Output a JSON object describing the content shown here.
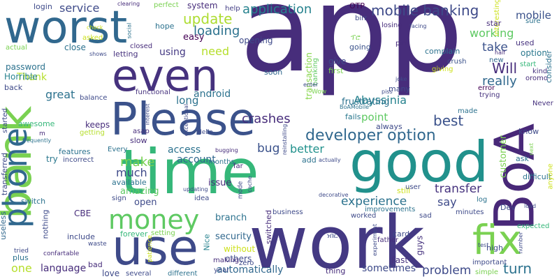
{
  "words": [
    {
      "text": "app",
      "color": "#472d7b"
    },
    {
      "text": "bank",
      "color": "#7ad151"
    },
    {
      "text": "worst",
      "color": "#31688e"
    },
    {
      "text": "time",
      "color": "#35b779"
    },
    {
      "text": "work",
      "color": "#443983"
    },
    {
      "text": "Please",
      "color": "#3b528b"
    },
    {
      "text": "good",
      "color": "#21918c"
    },
    {
      "text": "even",
      "color": "#46327e"
    },
    {
      "text": "use",
      "color": "#3e4a89"
    },
    {
      "text": "BoA",
      "color": "#482878"
    },
    {
      "text": "phone",
      "color": "#31688e"
    },
    {
      "text": "fix",
      "color": "#7ad151"
    },
    {
      "text": "money",
      "color": "#5ec962"
    },
    {
      "text": "developer option",
      "color": "#31688e"
    },
    {
      "text": "mobile banking",
      "color": "#3e4a89"
    },
    {
      "text": "application",
      "color": "#26828e"
    },
    {
      "text": "update",
      "color": "#addc30"
    },
    {
      "text": "loading",
      "color": "#2c728e"
    },
    {
      "text": "crashes",
      "color": "#472d7b"
    },
    {
      "text": "best",
      "color": "#3b528b"
    },
    {
      "text": "experience",
      "color": "#2c728e"
    },
    {
      "text": "transfer",
      "color": "#46327e"
    },
    {
      "text": "problem",
      "color": "#3e4a89"
    },
    {
      "text": "turn",
      "color": "#2c728e"
    },
    {
      "text": "really",
      "color": "#31688e"
    },
    {
      "text": "working",
      "color": "#5ec962"
    },
    {
      "text": "take",
      "color": "#3b528b"
    },
    {
      "text": "Will",
      "color": "#472d7b"
    },
    {
      "text": "mobile",
      "color": "#3b528b"
    },
    {
      "text": "option",
      "color": "#2a788e"
    },
    {
      "text": "service",
      "color": "#3e4a89"
    },
    {
      "text": "need",
      "color": "#b5de2b"
    },
    {
      "text": "using",
      "color": "#443983"
    },
    {
      "text": "long",
      "color": "#2c728e"
    },
    {
      "text": "great",
      "color": "#2c728e"
    },
    {
      "text": "bug",
      "color": "#3b528b"
    },
    {
      "text": "make",
      "color": "#7ad151"
    },
    {
      "text": "much",
      "color": "#3e4a89"
    },
    {
      "text": "better",
      "color": "#21918c"
    },
    {
      "text": "access",
      "color": "#2c728e"
    },
    {
      "text": "account",
      "color": "#31688e"
    },
    {
      "text": "issue",
      "color": "#472d7b"
    },
    {
      "text": "amazing",
      "color": "#5ec962"
    },
    {
      "text": "open",
      "color": "#3e4a89"
    },
    {
      "text": "say",
      "color": "#3e4a89"
    },
    {
      "text": "Abyssinia",
      "color": "#26828e"
    },
    {
      "text": "point",
      "color": "#5ec962"
    },
    {
      "text": "frustrating",
      "color": "#2c728e"
    },
    {
      "text": "android",
      "color": "#2c728e"
    },
    {
      "text": "customer",
      "color": "#7ad151"
    },
    {
      "text": "transaction",
      "color": "#86d549"
    },
    {
      "text": "language",
      "color": "#472d7b"
    },
    {
      "text": "automatically",
      "color": "#31688e"
    },
    {
      "text": "sometimes",
      "color": "#3e4a89"
    },
    {
      "text": "Fast",
      "color": "#46327e"
    },
    {
      "text": "one",
      "color": "#b5de2b"
    },
    {
      "text": "security",
      "color": "#31688e"
    },
    {
      "text": "branch",
      "color": "#2c728e"
    },
    {
      "text": "without",
      "color": "#cde11d"
    },
    {
      "text": "others",
      "color": "#3e4a89"
    },
    {
      "text": "Nice",
      "color": "#26828e"
    },
    {
      "text": "switched",
      "color": "#472d7b"
    },
    {
      "text": "easy",
      "color": "#440154"
    },
    {
      "text": "system",
      "color": "#472d7b"
    },
    {
      "text": "opening",
      "color": "#3e4a89"
    },
    {
      "text": "help",
      "color": "#433e85"
    },
    {
      "text": "login",
      "color": "#3e4a89"
    },
    {
      "text": "perfect",
      "color": "#7ad151"
    },
    {
      "text": "OTP",
      "color": "#440154"
    },
    {
      "text": "birr",
      "color": "#3e4a89"
    },
    {
      "text": "interesting",
      "color": "#cde11d"
    },
    {
      "text": "Thank",
      "color": "#b5de2b"
    },
    {
      "text": "password",
      "color": "#2c728e"
    },
    {
      "text": "Horrible",
      "color": "#26828e"
    },
    {
      "text": "close",
      "color": "#2c728e"
    },
    {
      "text": "asked",
      "color": "#cde11d"
    },
    {
      "text": "letting",
      "color": "#46327e"
    },
    {
      "text": "closed",
      "color": "#472d7b"
    },
    {
      "text": "hope",
      "color": "#2c728e"
    },
    {
      "text": "soon",
      "color": "#31688e"
    },
    {
      "text": "banking",
      "color": "#5ec962"
    },
    {
      "text": "give",
      "color": "#3e4a89"
    },
    {
      "text": "first",
      "color": "#7ad151"
    },
    {
      "text": "going",
      "color": "#3b528b"
    },
    {
      "text": "losing",
      "color": "#472d7b"
    },
    {
      "text": "star",
      "color": "#472d7b"
    },
    {
      "text": "sure",
      "color": "#2c728e"
    },
    {
      "text": "used",
      "color": "#46327e"
    },
    {
      "text": "complain",
      "color": "#2c728e"
    },
    {
      "text": "giving",
      "color": "#cde11d"
    },
    {
      "text": "crush",
      "color": "#3b528b"
    },
    {
      "text": "kind",
      "color": "#46327e"
    },
    {
      "text": "start",
      "color": "#35b779"
    },
    {
      "text": "consider",
      "color": "#2c728e"
    },
    {
      "text": "oromo",
      "color": "#472d7b"
    },
    {
      "text": "error",
      "color": "#440154"
    },
    {
      "text": "trying",
      "color": "#46327e"
    },
    {
      "text": "new",
      "color": "#31688e"
    },
    {
      "text": "many",
      "color": "#3e4a89"
    },
    {
      "text": "keeps",
      "color": "#472d7b"
    },
    {
      "text": "getting",
      "color": "#b5de2b"
    },
    {
      "text": "awesome",
      "color": "#35b779"
    },
    {
      "text": "slow",
      "color": "#472d7b"
    },
    {
      "text": "features",
      "color": "#2c728e"
    },
    {
      "text": "Every",
      "color": "#2c728e"
    },
    {
      "text": "incorrect",
      "color": "#3e4a89"
    },
    {
      "text": "try",
      "color": "#2a788e"
    },
    {
      "text": "available",
      "color": "#2c728e"
    },
    {
      "text": "sign",
      "color": "#3e4a89"
    },
    {
      "text": "idea",
      "color": "#3e4a89"
    },
    {
      "text": "far",
      "color": "#472d7b"
    },
    {
      "text": "add",
      "color": "#2c728e"
    },
    {
      "text": "fails",
      "color": "#2a788e"
    },
    {
      "text": "always",
      "color": "#3e4a89"
    },
    {
      "text": "months",
      "color": "#2c728e"
    },
    {
      "text": "Never",
      "color": "#46327e"
    },
    {
      "text": "know",
      "color": "#3e4a89"
    },
    {
      "text": "made",
      "color": "#2c728e"
    },
    {
      "text": "difficult",
      "color": "#2c728e"
    },
    {
      "text": "ask",
      "color": "#2c728e"
    },
    {
      "text": "anyone",
      "color": "#cde11d"
    },
    {
      "text": "still",
      "color": "#cde11d"
    },
    {
      "text": "user",
      "color": "#3e4a89"
    },
    {
      "text": "log",
      "color": "#2c728e"
    },
    {
      "text": "Dev",
      "color": "#3e4a89"
    },
    {
      "text": "minutes",
      "color": "#3e4a89"
    },
    {
      "text": "business",
      "color": "#3e4a89"
    },
    {
      "text": "improvements",
      "color": "#2c728e"
    },
    {
      "text": "worked",
      "color": "#3e4a89"
    },
    {
      "text": "card",
      "color": "#3e4a89"
    },
    {
      "text": "guys",
      "color": "#46327e"
    },
    {
      "text": "high",
      "color": "#3e4a89"
    },
    {
      "text": "important",
      "color": "#3e4a89"
    },
    {
      "text": "simple",
      "color": "#7ad151"
    },
    {
      "text": "expected",
      "color": "#35b779"
    },
    {
      "text": "thing",
      "color": "#472d7b"
    },
    {
      "text": "zero",
      "color": "#3e4a89"
    },
    {
      "text": "year",
      "color": "#3e4a89"
    },
    {
      "text": "making",
      "color": "#472d7b"
    },
    {
      "text": "different",
      "color": "#2c728e"
    },
    {
      "text": "several",
      "color": "#3e4a89"
    },
    {
      "text": "love",
      "color": "#3e4a89"
    },
    {
      "text": "bad",
      "color": "#472d7b"
    },
    {
      "text": "include",
      "color": "#3e4a89"
    },
    {
      "text": "forever",
      "color": "#35b779"
    },
    {
      "text": "setting",
      "color": "#7ad151"
    },
    {
      "text": "plus",
      "color": "#2c728e"
    },
    {
      "text": "CBE",
      "color": "#472d7b"
    },
    {
      "text": "useless",
      "color": "#31688e"
    },
    {
      "text": "switch",
      "color": "#2c728e"
    },
    {
      "text": "transferred",
      "color": "#3e4a89"
    },
    {
      "text": "functional",
      "color": "#46327e"
    },
    {
      "text": "balance",
      "color": "#3e4a89"
    },
    {
      "text": "started",
      "color": "#3e4a89"
    },
    {
      "text": "actual",
      "color": "#7ad151"
    },
    {
      "text": "back",
      "color": "#3e4a89"
    },
    {
      "text": "nothing",
      "color": "#3e4a89"
    },
    {
      "text": "waste",
      "color": "#3e4a89"
    },
    {
      "text": "patience",
      "color": "#cde11d"
    },
    {
      "text": "tried",
      "color": "#3e4a89"
    },
    {
      "text": "confartable",
      "color": "#472d7b"
    },
    {
      "text": "clearing",
      "color": "#472d7b"
    },
    {
      "text": "chock",
      "color": "#cde11d"
    },
    {
      "text": "shows",
      "color": "#3e4a89"
    },
    {
      "text": "social",
      "color": "#2c728e"
    },
    {
      "text": "interest",
      "color": "#3e4a89"
    },
    {
      "text": "exceptional",
      "color": "#3e4a89"
    },
    {
      "text": "frequently",
      "color": "#2c728e"
    },
    {
      "text": "Hello",
      "color": "#3e4a89"
    },
    {
      "text": "asap",
      "color": "#472d7b"
    },
    {
      "text": "updating",
      "color": "#3e4a89"
    },
    {
      "text": "bugging",
      "color": "#472d7b"
    },
    {
      "text": "cache",
      "color": "#3e4a89"
    },
    {
      "text": "mode",
      "color": "#3e4a89"
    },
    {
      "text": "decorative",
      "color": "#3e4a89"
    },
    {
      "text": "actually",
      "color": "#3e4a89"
    },
    {
      "text": "reinstalling",
      "color": "#3e4a89"
    },
    {
      "text": "BoAMobile",
      "color": "#2c728e"
    },
    {
      "text": "Wow",
      "color": "#7ad151"
    },
    {
      "text": "enter",
      "color": "#3e4a89"
    },
    {
      "text": "piss",
      "color": "#3e4a89"
    },
    {
      "text": "joke",
      "color": "#3e4a89"
    },
    {
      "text": "father",
      "color": "#472d7b"
    },
    {
      "text": "sad",
      "color": "#3e4a89"
    },
    {
      "text": "experiment",
      "color": "#3e4a89"
    },
    {
      "text": "test",
      "color": "#3e4a89"
    },
    {
      "text": "number",
      "color": "#3e4a89"
    },
    {
      "text": "next",
      "color": "#7ad151"
    },
    {
      "text": "load",
      "color": "#3e4a89"
    },
    {
      "text": "half",
      "color": "#472d7b"
    },
    {
      "text": "facing",
      "color": "#3e4a89"
    },
    {
      "text": "pin",
      "color": "#472d7b"
    },
    {
      "text": "u",
      "color": "#472d7b"
    },
    {
      "text": "m",
      "color": "#472d7b"
    },
    {
      "text": "ፕሮ",
      "color": "#7ad151"
    },
    {
      "text": "ነበር",
      "color": "#3e4a89"
    }
  ]
}
